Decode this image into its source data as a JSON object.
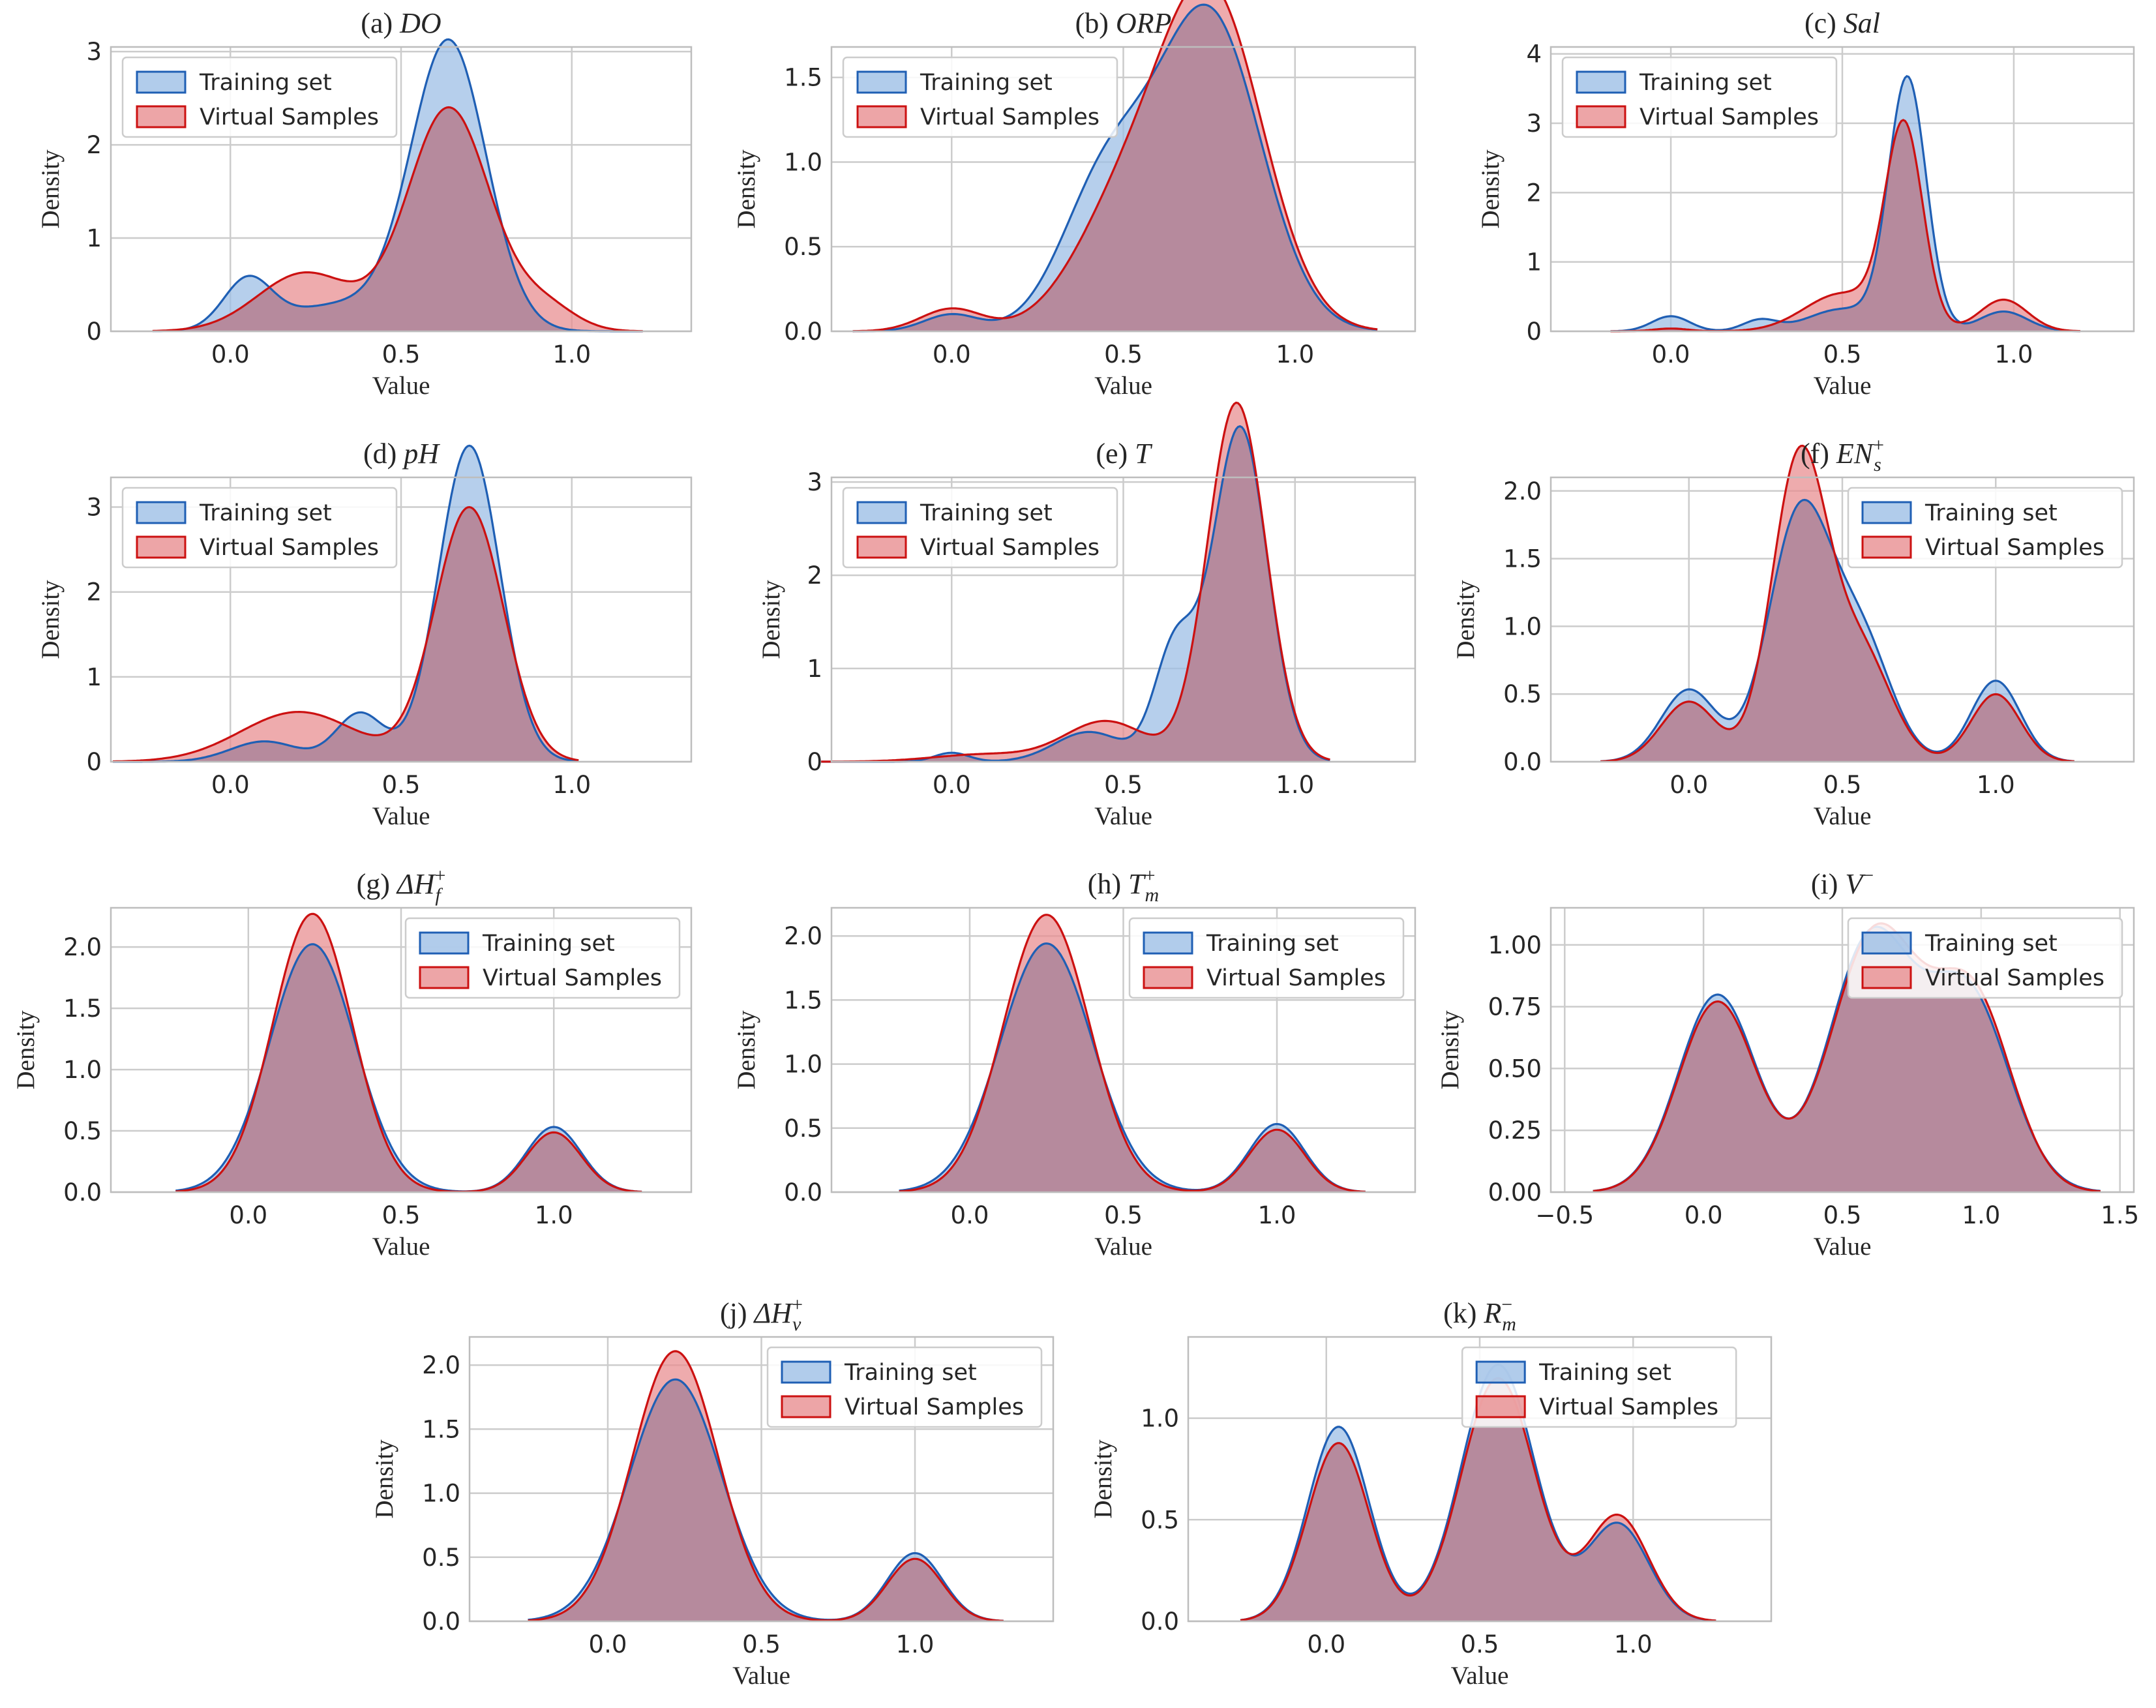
{
  "figure": {
    "legend_labels": [
      "Training set",
      "Virtual Samples"
    ],
    "colors": {
      "training_line": "#1f5fb4",
      "training_fill": "#9ebfe6",
      "virtual_line": "#cc1111",
      "virtual_fill": "#e88f91",
      "overlap_fill": "#b68a9d"
    }
  },
  "chart_data": [
    {
      "type": "area",
      "id": "a",
      "title_prefix": "(a)",
      "title_var": "DO",
      "xlabel": "Value",
      "ylabel": "Density",
      "xlim": [
        -0.35,
        1.35
      ],
      "ylim": [
        0,
        3.05
      ],
      "xticks": [
        0.0,
        0.5,
        1.0
      ],
      "xtick_labels": [
        "0.0",
        "0.5",
        "1.0"
      ],
      "yticks": [
        0,
        1,
        2,
        3
      ],
      "ytick_labels": [
        "0",
        "1",
        "2",
        "3"
      ],
      "legend_position": "top-left",
      "series": [
        {
          "name": "Training set",
          "components": [
            [
              0.05,
              0.07,
              0.09
            ],
            [
              0.32,
              0.17,
              0.12
            ],
            [
              0.64,
              0.11,
              0.85
            ]
          ]
        },
        {
          "name": "Virtual Samples",
          "components": [
            [
              0.22,
              0.14,
              0.22
            ],
            [
              0.64,
              0.12,
              0.72
            ],
            [
              0.92,
              0.09,
              0.06
            ]
          ]
        }
      ]
    },
    {
      "type": "area",
      "id": "b",
      "title_prefix": "(b)",
      "title_var": "ORP",
      "xlabel": "Value",
      "ylabel": "Density",
      "xlim": [
        -0.35,
        1.35
      ],
      "ylim": [
        0,
        1.68
      ],
      "xticks": [
        0.0,
        0.5,
        1.0
      ],
      "xtick_labels": [
        "0.0",
        "0.5",
        "1.0"
      ],
      "yticks": [
        0.0,
        0.5,
        1.0,
        1.5
      ],
      "ytick_labels": [
        "0.0",
        "0.5",
        "1.0",
        "1.5"
      ],
      "legend_position": "top-left",
      "series": [
        {
          "name": "Training set",
          "components": [
            [
              0.0,
              0.08,
              0.02
            ],
            [
              0.45,
              0.13,
              0.28
            ],
            [
              0.75,
              0.15,
              0.7
            ]
          ]
        },
        {
          "name": "Virtual Samples",
          "components": [
            [
              0.0,
              0.09,
              0.03
            ],
            [
              0.5,
              0.15,
              0.25
            ],
            [
              0.76,
              0.15,
              0.72
            ]
          ]
        }
      ]
    },
    {
      "type": "area",
      "id": "c",
      "title_prefix": "(c)",
      "title_var": "Sal",
      "xlabel": "Value",
      "ylabel": "Density",
      "xlim": [
        -0.35,
        1.35
      ],
      "ylim": [
        0,
        4.1
      ],
      "xticks": [
        0.0,
        0.5,
        1.0
      ],
      "xtick_labels": [
        "0.0",
        "0.5",
        "1.0"
      ],
      "yticks": [
        0,
        1,
        2,
        3,
        4
      ],
      "ytick_labels": [
        "0",
        "1",
        "2",
        "3",
        "4"
      ],
      "legend_position": "top-left",
      "series": [
        {
          "name": "Training set",
          "components": [
            [
              0.0,
              0.055,
              0.03
            ],
            [
              0.26,
              0.05,
              0.02
            ],
            [
              0.5,
              0.1,
              0.08
            ],
            [
              0.69,
              0.055,
              0.5
            ],
            [
              0.97,
              0.07,
              0.05
            ]
          ]
        },
        {
          "name": "Virtual Samples",
          "components": [
            [
              0.0,
              0.05,
              0.005
            ],
            [
              0.5,
              0.11,
              0.15
            ],
            [
              0.68,
              0.055,
              0.4
            ],
            [
              0.97,
              0.07,
              0.08
            ]
          ]
        }
      ]
    },
    {
      "type": "area",
      "id": "d",
      "title_prefix": "(d)",
      "title_var": "pH",
      "xlabel": "Value",
      "ylabel": "Density",
      "xlim": [
        -0.35,
        1.35
      ],
      "ylim": [
        0,
        3.35
      ],
      "xticks": [
        0.0,
        0.5,
        1.0
      ],
      "xtick_labels": [
        "0.0",
        "0.5",
        "1.0"
      ],
      "yticks": [
        0,
        1,
        2,
        3
      ],
      "ytick_labels": [
        "0",
        "1",
        "2",
        "3"
      ],
      "legend_position": "top-left",
      "series": [
        {
          "name": "Training set",
          "components": [
            [
              0.1,
              0.1,
              0.06
            ],
            [
              0.38,
              0.07,
              0.1
            ],
            [
              0.7,
              0.09,
              0.84
            ]
          ]
        },
        {
          "name": "Virtual Samples",
          "components": [
            [
              0.2,
              0.17,
              0.25
            ],
            [
              0.7,
              0.1,
              0.75
            ]
          ]
        }
      ]
    },
    {
      "type": "area",
      "id": "e",
      "title_prefix": "(e)",
      "title_var": "T",
      "xlabel": "Value",
      "ylabel": "Density",
      "xlim": [
        -0.35,
        1.35
      ],
      "ylim": [
        0,
        3.05
      ],
      "xticks": [
        0.0,
        0.5,
        1.0
      ],
      "xtick_labels": [
        "0.0",
        "0.5",
        "1.0"
      ],
      "yticks": [
        0,
        1,
        2,
        3
      ],
      "ytick_labels": [
        "0",
        "1",
        "2",
        "3"
      ],
      "legend_position": "top-left",
      "series": [
        {
          "name": "Training set",
          "components": [
            [
              0.0,
              0.05,
              0.012
            ],
            [
              0.4,
              0.1,
              0.08
            ],
            [
              0.65,
              0.06,
              0.18
            ],
            [
              0.84,
              0.08,
              0.72
            ]
          ]
        },
        {
          "name": "Virtual Samples",
          "components": [
            [
              0.1,
              0.15,
              0.03
            ],
            [
              0.45,
              0.12,
              0.13
            ],
            [
              0.83,
              0.085,
              0.82
            ]
          ]
        }
      ]
    },
    {
      "type": "area",
      "id": "f",
      "title_prefix": "(f)",
      "title_var": "EN",
      "title_sub": "s",
      "title_sup": "+",
      "xlabel": "Value",
      "ylabel": "Density",
      "xlim": [
        -0.45,
        1.45
      ],
      "ylim": [
        0,
        2.1
      ],
      "xticks": [
        0.0,
        0.5,
        1.0
      ],
      "xtick_labels": [
        "0.0",
        "0.5",
        "1.0"
      ],
      "yticks": [
        0.0,
        0.5,
        1.0,
        1.5,
        2.0
      ],
      "ytick_labels": [
        "0.0",
        "0.5",
        "1.0",
        "1.5",
        "2.0"
      ],
      "legend_position": "top-right",
      "series": [
        {
          "name": "Training set",
          "components": [
            [
              0.0,
              0.09,
              0.12
            ],
            [
              0.36,
              0.1,
              0.45
            ],
            [
              0.56,
              0.1,
              0.22
            ],
            [
              1.0,
              0.08,
              0.12
            ]
          ]
        },
        {
          "name": "Virtual Samples",
          "components": [
            [
              0.0,
              0.09,
              0.1
            ],
            [
              0.36,
              0.09,
              0.5
            ],
            [
              0.56,
              0.1,
              0.2
            ],
            [
              1.0,
              0.08,
              0.1
            ]
          ]
        }
      ]
    },
    {
      "type": "area",
      "id": "g",
      "title_prefix": "(g)",
      "title_var": "ΔH",
      "title_sub": "f",
      "title_sup": "+",
      "xlabel": "Value",
      "ylabel": "Density",
      "xlim": [
        -0.45,
        1.45
      ],
      "ylim": [
        0,
        2.32
      ],
      "xticks": [
        0.0,
        0.5,
        1.0
      ],
      "xtick_labels": [
        "0.0",
        "0.5",
        "1.0"
      ],
      "yticks": [
        0.0,
        0.5,
        1.0,
        1.5,
        2.0
      ],
      "ytick_labels": [
        "0.0",
        "0.5",
        "1.0",
        "1.5",
        "2.0"
      ],
      "legend_position": "top-right",
      "series": [
        {
          "name": "Training set",
          "components": [
            [
              0.21,
              0.14,
              0.71
            ],
            [
              1.0,
              0.09,
              0.12
            ]
          ]
        },
        {
          "name": "Virtual Samples",
          "components": [
            [
              0.21,
              0.13,
              0.74
            ],
            [
              1.0,
              0.09,
              0.11
            ]
          ]
        }
      ]
    },
    {
      "type": "area",
      "id": "h",
      "title_prefix": "(h)",
      "title_var": "T",
      "title_sub": "m",
      "title_sup": "+",
      "xlabel": "Value",
      "ylabel": "Density",
      "xlim": [
        -0.45,
        1.45
      ],
      "ylim": [
        0,
        2.22
      ],
      "xticks": [
        0.0,
        0.5,
        1.0
      ],
      "xtick_labels": [
        "0.0",
        "0.5",
        "1.0"
      ],
      "yticks": [
        0.0,
        0.5,
        1.0,
        1.5,
        2.0
      ],
      "ytick_labels": [
        "0.0",
        "0.5",
        "1.0",
        "1.5",
        "2.0"
      ],
      "legend_position": "top-right",
      "series": [
        {
          "name": "Training set",
          "components": [
            [
              0.25,
              0.15,
              0.73
            ],
            [
              1.0,
              0.09,
              0.12
            ]
          ]
        },
        {
          "name": "Virtual Samples",
          "components": [
            [
              0.25,
              0.14,
              0.76
            ],
            [
              1.0,
              0.09,
              0.11
            ]
          ]
        }
      ]
    },
    {
      "type": "area",
      "id": "i",
      "title_prefix": "(i)",
      "title_var": "V",
      "title_sup": "−",
      "xlabel": "Value",
      "ylabel": "Density",
      "xlim": [
        -0.55,
        1.55
      ],
      "ylim": [
        0,
        1.15
      ],
      "xticks": [
        -0.5,
        0.0,
        0.5,
        1.0,
        1.5
      ],
      "xtick_labels": [
        "−0.5",
        "0.0",
        "0.5",
        "1.0",
        "1.5"
      ],
      "yticks": [
        0.0,
        0.25,
        0.5,
        0.75,
        1.0
      ],
      "ytick_labels": [
        "0.00",
        "0.25",
        "0.50",
        "0.75",
        "1.00"
      ],
      "legend_position": "top-right",
      "series": [
        {
          "name": "Training set",
          "components": [
            [
              0.05,
              0.14,
              0.28
            ],
            [
              0.6,
              0.15,
              0.38
            ],
            [
              0.95,
              0.15,
              0.3
            ]
          ]
        },
        {
          "name": "Virtual Samples",
          "components": [
            [
              0.05,
              0.14,
              0.27
            ],
            [
              0.62,
              0.16,
              0.42
            ],
            [
              0.97,
              0.14,
              0.27
            ]
          ]
        }
      ]
    },
    {
      "type": "area",
      "id": "j",
      "title_prefix": "(j)",
      "title_var": "ΔH",
      "title_sub": "v",
      "title_sup": "+",
      "xlabel": "Value",
      "ylabel": "Density",
      "xlim": [
        -0.45,
        1.45
      ],
      "ylim": [
        0,
        2.22
      ],
      "xticks": [
        0.0,
        0.5,
        1.0
      ],
      "xtick_labels": [
        "0.0",
        "0.5",
        "1.0"
      ],
      "yticks": [
        0.0,
        0.5,
        1.0,
        1.5,
        2.0
      ],
      "ytick_labels": [
        "0.0",
        "0.5",
        "1.0",
        "1.5",
        "2.0"
      ],
      "legend_position": "top-right",
      "series": [
        {
          "name": "Training set",
          "components": [
            [
              0.22,
              0.15,
              0.71
            ],
            [
              1.0,
              0.09,
              0.12
            ]
          ]
        },
        {
          "name": "Virtual Samples",
          "components": [
            [
              0.22,
              0.14,
              0.74
            ],
            [
              1.0,
              0.09,
              0.11
            ]
          ]
        }
      ]
    },
    {
      "type": "area",
      "id": "k",
      "title_prefix": "(k)",
      "title_var": "R",
      "title_sub": "m",
      "title_sup": "−",
      "xlabel": "Value",
      "ylabel": "Density",
      "xlim": [
        -0.45,
        1.45
      ],
      "ylim": [
        0,
        1.4
      ],
      "xticks": [
        0.0,
        0.5,
        1.0
      ],
      "xtick_labels": [
        "0.0",
        "0.5",
        "1.0"
      ],
      "yticks": [
        0.0,
        0.5,
        1.0
      ],
      "ytick_labels": [
        "0.0",
        "0.5",
        "1.0"
      ],
      "legend_position": "top-center",
      "series": [
        {
          "name": "Training set",
          "components": [
            [
              0.04,
              0.1,
              0.24
            ],
            [
              0.56,
              0.12,
              0.38
            ],
            [
              0.95,
              0.1,
              0.12
            ]
          ]
        },
        {
          "name": "Virtual Samples",
          "components": [
            [
              0.04,
              0.1,
              0.22
            ],
            [
              0.56,
              0.12,
              0.36
            ],
            [
              0.95,
              0.1,
              0.13
            ]
          ]
        }
      ]
    }
  ]
}
